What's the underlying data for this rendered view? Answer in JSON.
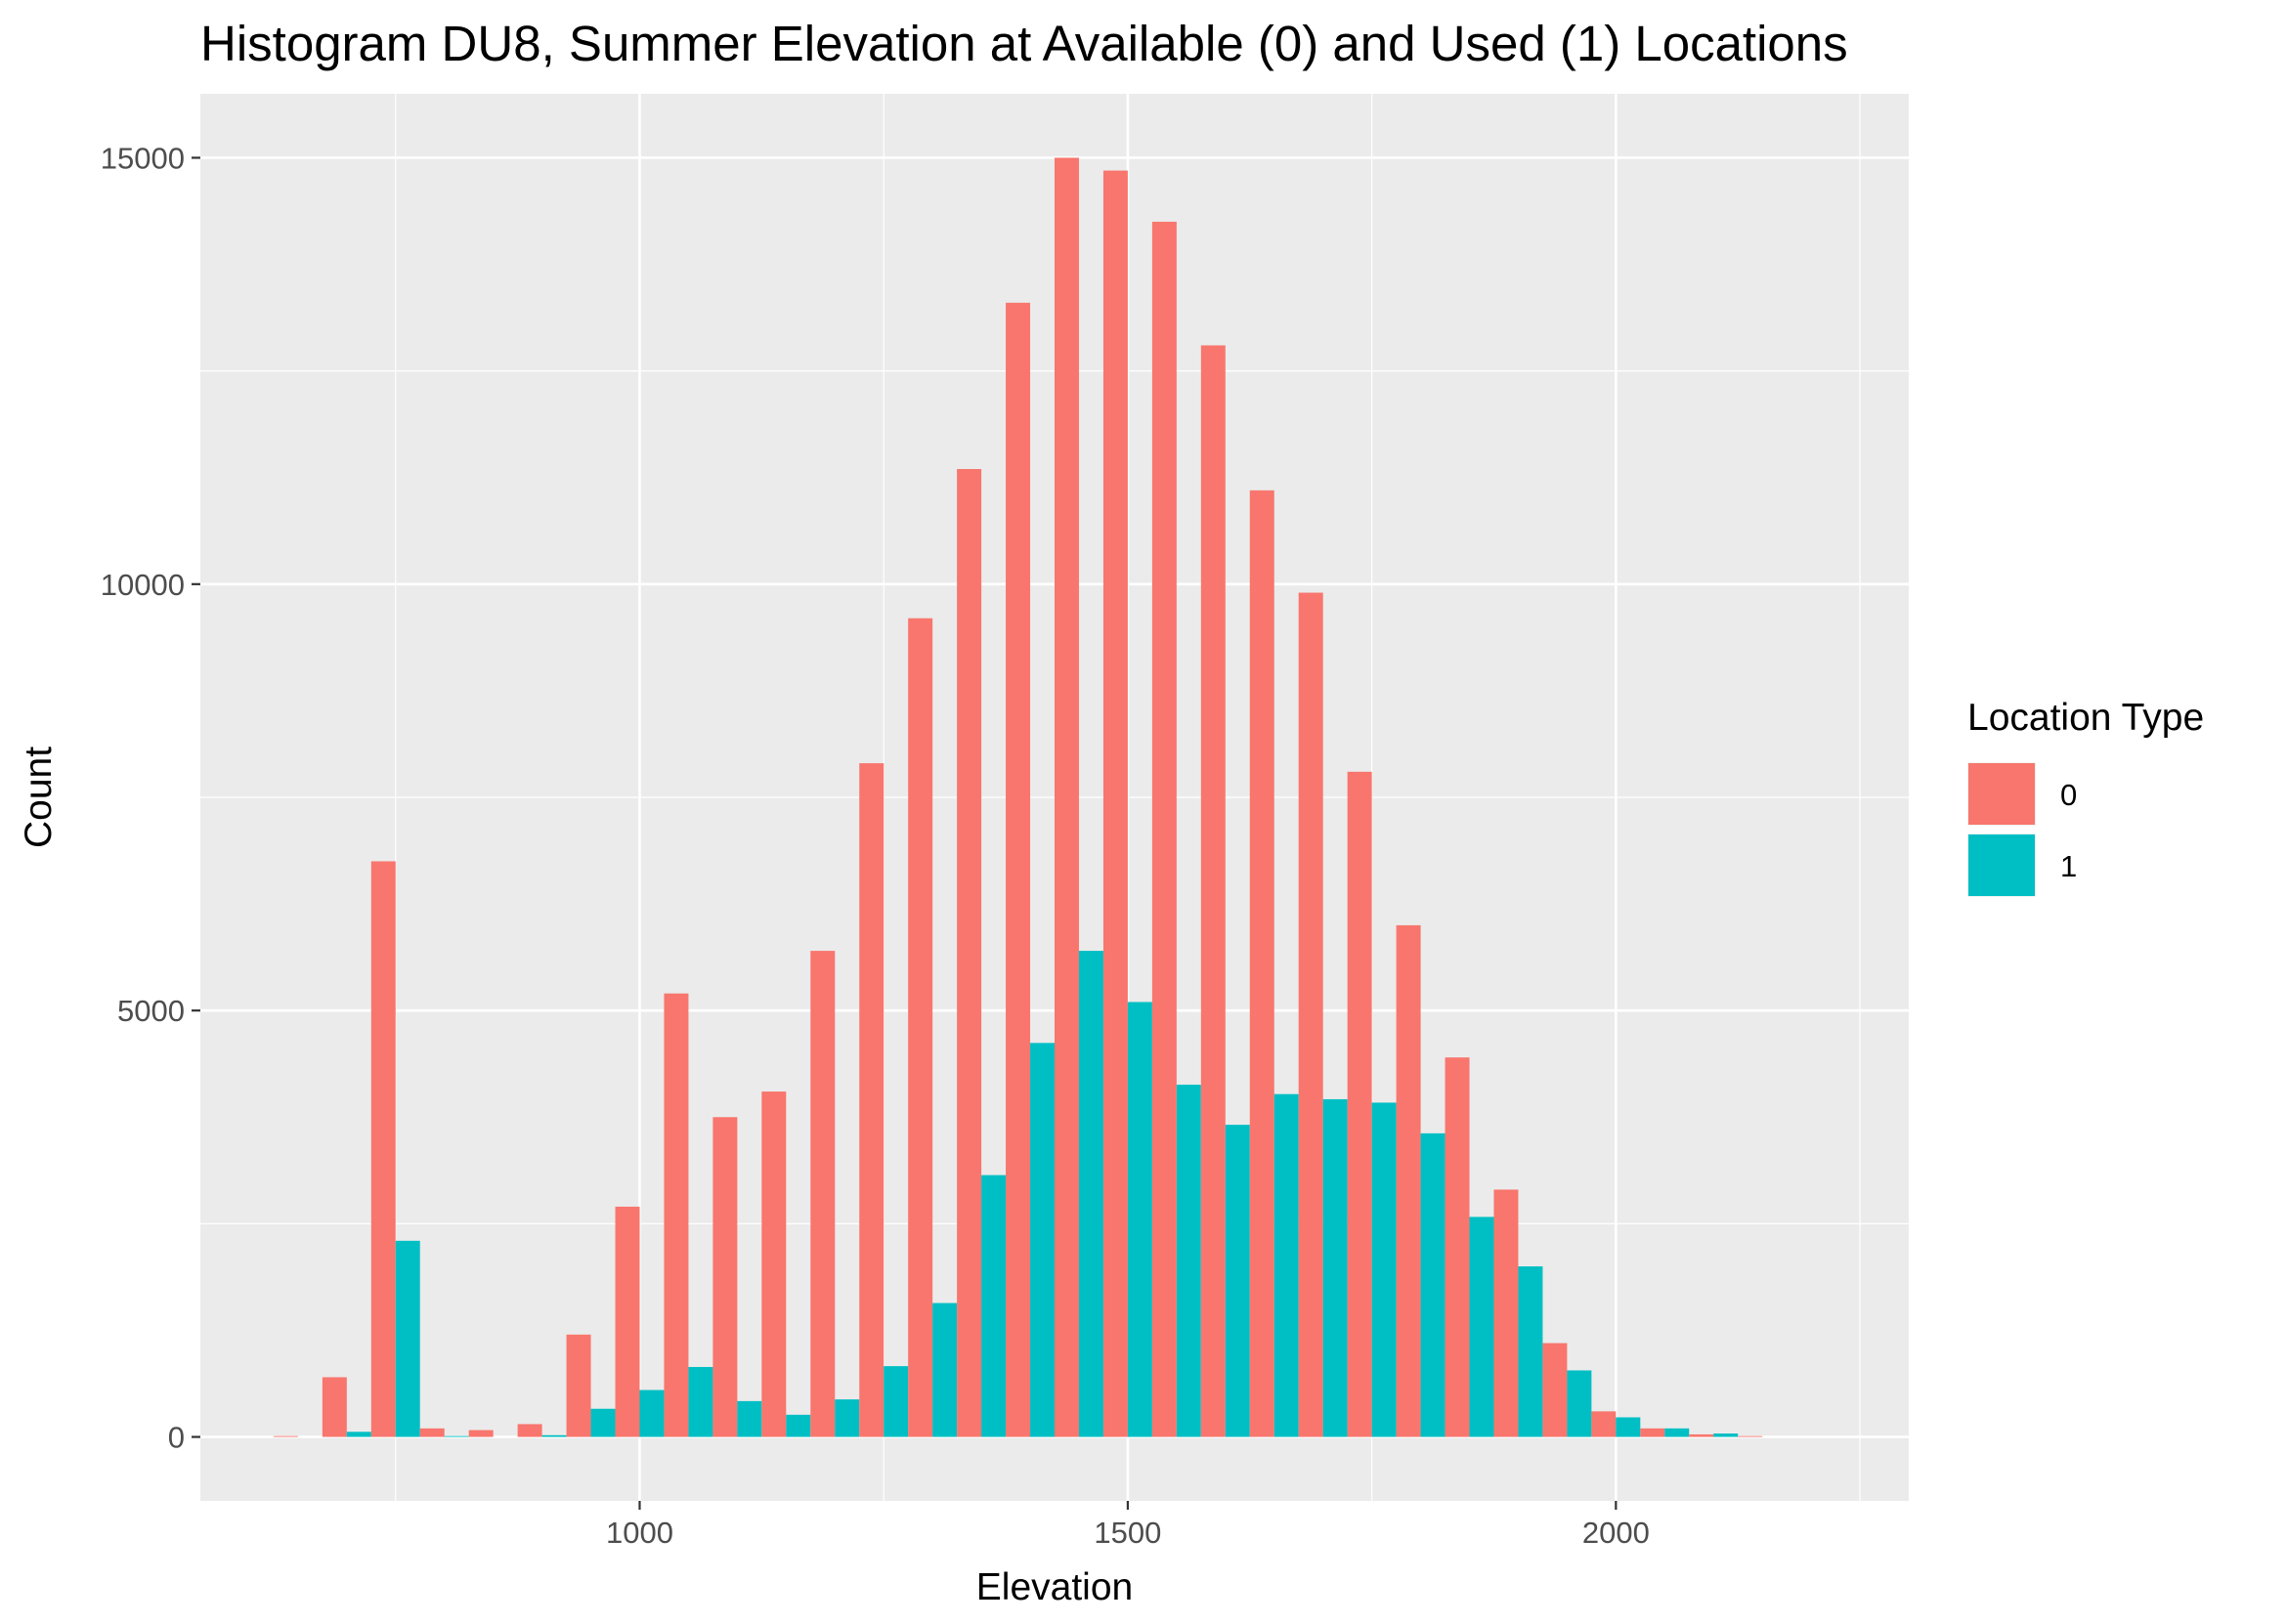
{
  "chart_data": {
    "type": "bar",
    "title": "Histogram DU8, Summer Elevation at Available (0) and Used (1) Locations",
    "xlabel": "Elevation",
    "ylabel": "Count",
    "xlim": [
      550,
      2300
    ],
    "ylim": [
      -750,
      15750
    ],
    "x_ticks": [
      1000,
      1500,
      2000
    ],
    "y_ticks": [
      0,
      5000,
      10000,
      15000
    ],
    "grid": true,
    "bin_width": 50,
    "x": [
      650,
      700,
      750,
      800,
      850,
      900,
      950,
      1000,
      1050,
      1100,
      1150,
      1200,
      1250,
      1300,
      1350,
      1400,
      1450,
      1500,
      1550,
      1600,
      1650,
      1700,
      1750,
      1800,
      1850,
      1900,
      1950,
      2000,
      2050,
      2100,
      2150
    ],
    "legend": {
      "title": "Location Type",
      "position": "right"
    },
    "series": [
      {
        "name": "0",
        "color": "#F8766D",
        "values": [
          10,
          700,
          6750,
          100,
          80,
          150,
          1200,
          2700,
          5200,
          3750,
          4050,
          5700,
          7900,
          9600,
          11350,
          13300,
          15000,
          14850,
          14250,
          12800,
          11100,
          9900,
          7800,
          6000,
          4450,
          2900,
          1100,
          300,
          100,
          30,
          10
        ]
      },
      {
        "name": "1",
        "color": "#00BFC4",
        "values": [
          0,
          60,
          2300,
          10,
          0,
          20,
          330,
          550,
          820,
          420,
          260,
          440,
          830,
          1570,
          3070,
          4620,
          5700,
          5100,
          4130,
          3660,
          4020,
          3960,
          3920,
          3560,
          2580,
          2000,
          780,
          230,
          100,
          40,
          0
        ]
      }
    ]
  }
}
